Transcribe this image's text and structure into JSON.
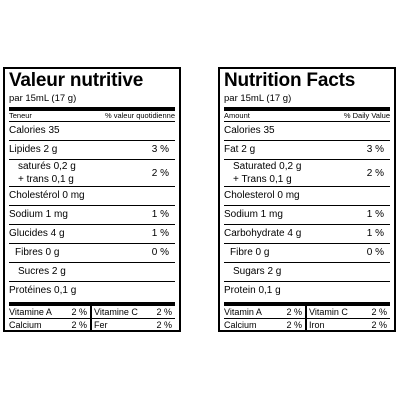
{
  "fr": {
    "title": "Valeur nutritive",
    "serving": "par 15mL (17 g)",
    "header_left": "Teneur",
    "header_right": "% valeur quotidienne",
    "calories": "Calories 35",
    "fat_label": "Lipides 2 g",
    "fat_pct": "3 %",
    "sat_label": "saturés 0,2 g",
    "trans_label": "+ trans 0,1 g",
    "sat_trans_pct": "2 %",
    "cholesterol": "Cholestérol 0 mg",
    "sodium_label": "Sodium 1 mg",
    "sodium_pct": "1 %",
    "carb_label": "Glucides 4 g",
    "carb_pct": "1 %",
    "fibre_label": "Fibres 0 g",
    "fibre_pct": "0 %",
    "sugars": "Sucres 2 g",
    "protein": "Protéines 0,1 g",
    "vitA_label": "Vitamine A",
    "vitA_pct": "2 %",
    "vitC_label": "Vitamine C",
    "vitC_pct": "2 %",
    "calcium_label": "Calcium",
    "calcium_pct": "2 %",
    "iron_label": "Fer",
    "iron_pct": "2 %"
  },
  "en": {
    "title": "Nutrition Facts",
    "serving": "par 15mL (17 g)",
    "header_left": "Amount",
    "header_right": "% Daily Value",
    "calories": "Calories 35",
    "fat_label": "Fat 2 g",
    "fat_pct": "3 %",
    "sat_label": "Saturated 0,2 g",
    "trans_label": "+ Trans 0,1 g",
    "sat_trans_pct": "2 %",
    "cholesterol": "Cholesterol 0 mg",
    "sodium_label": "Sodium 1 mg",
    "sodium_pct": "1 %",
    "carb_label": "Carbohydrate 4 g",
    "carb_pct": "1 %",
    "fibre_label": "Fibre 0 g",
    "fibre_pct": "0 %",
    "sugars": "Sugars 2 g",
    "protein": "Protein 0,1 g",
    "vitA_label": "Vitamin A",
    "vitA_pct": "2 %",
    "vitC_label": "Vitamin C",
    "vitC_pct": "2 %",
    "calcium_label": "Calcium",
    "calcium_pct": "2 %",
    "iron_label": "Iron",
    "iron_pct": "2 %"
  }
}
